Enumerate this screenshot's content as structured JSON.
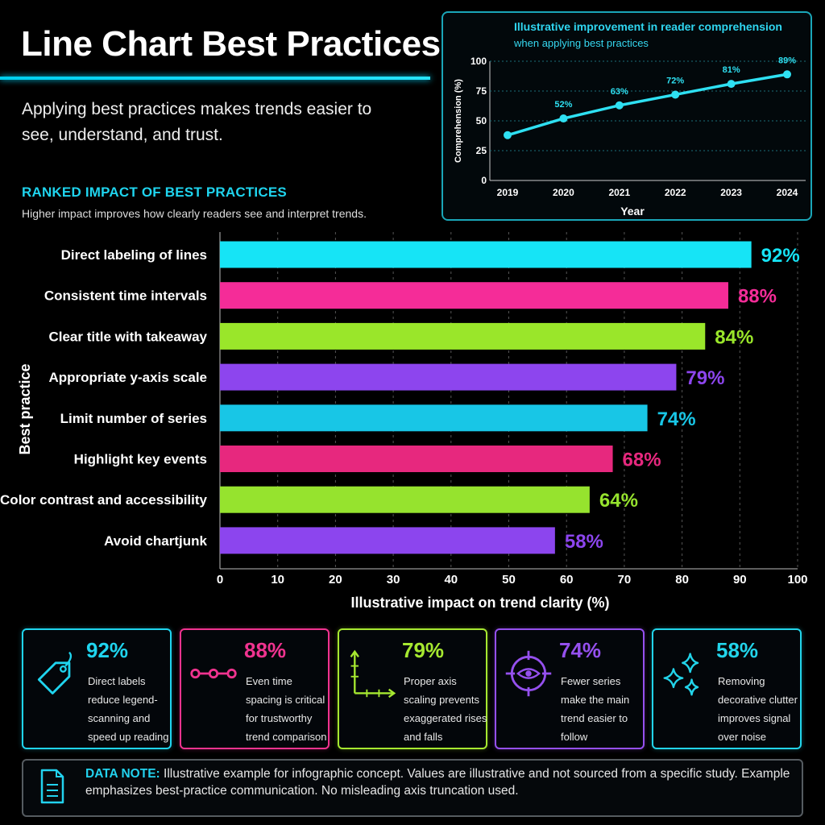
{
  "header": {
    "title": "Line Chart Best Practices",
    "subtitle": "Applying best practices makes trends easier to see, understand, and trust."
  },
  "ranked": {
    "heading": "RANKED IMPACT OF BEST PRACTICES",
    "subheading": "Higher impact improves how clearly readers see and interpret trends."
  },
  "chart_data": [
    {
      "type": "line",
      "title": "Illustrative improvement in reader comprehension",
      "subtitle": "when applying best practices",
      "xlabel": "Year",
      "ylabel": "Comprehension (%)",
      "x": [
        "2019",
        "2020",
        "2021",
        "2022",
        "2023",
        "2024"
      ],
      "series": [
        {
          "values": [
            38,
            52,
            63,
            72,
            81,
            89
          ],
          "point_labels": [
            "",
            "52%",
            "63%",
            "72%",
            "81%",
            "89%"
          ]
        }
      ],
      "ylim": [
        0,
        100
      ],
      "yticks": [
        0,
        25,
        50,
        75,
        100
      ],
      "grid": "horizontal dashed",
      "color": "#2ee0f2"
    },
    {
      "type": "bar",
      "orientation": "horizontal",
      "xlabel": "Illustrative impact on trend clarity (%)",
      "ylabel": "Best practice",
      "xlim": [
        0,
        100
      ],
      "xticks": [
        0,
        10,
        20,
        30,
        40,
        50,
        60,
        70,
        80,
        90,
        100
      ],
      "grid": "vertical dashed",
      "categories": [
        "Direct labeling of lines",
        "Consistent time intervals",
        "Clear title with takeaway",
        "Appropriate y-axis scale",
        "Limit number of series",
        "Highlight key events",
        "Color contrast and accessibility",
        "Avoid chartjunk"
      ],
      "values": [
        92,
        88,
        84,
        79,
        74,
        68,
        64,
        58
      ],
      "value_labels": [
        "92%",
        "88%",
        "84%",
        "79%",
        "74%",
        "68%",
        "64%",
        "58%"
      ],
      "colors": [
        "#16e4f6",
        "#f52c98",
        "#9ae62a",
        "#8d45ee",
        "#18c6e6",
        "#e7287e",
        "#96e32e",
        "#8c45ee"
      ]
    }
  ],
  "cards": [
    {
      "pct": "92%",
      "desc": "Direct labels reduce legend-scanning and speed up reading",
      "color": "#1fd4ee",
      "icon": "tag-icon"
    },
    {
      "pct": "88%",
      "desc": "Even time spacing is critical for trustworthy trend comparison",
      "color": "#f0338f",
      "icon": "timeline-dots-icon"
    },
    {
      "pct": "79%",
      "desc": "Proper axis scaling prevents exaggerated rises and falls",
      "color": "#a6e830",
      "icon": "axes-icon"
    },
    {
      "pct": "74%",
      "desc": "Fewer series make the main trend easier to follow",
      "color": "#9550ee",
      "icon": "target-eye-icon"
    },
    {
      "pct": "58%",
      "desc": "Removing decorative clutter improves signal over noise",
      "color": "#22d4ea",
      "icon": "sparkle-icon"
    }
  ],
  "note": {
    "label": "DATA NOTE:",
    "text": " Illustrative example for infographic concept. Values are illustrative and not sourced from a specific study. Example emphasizes best-practice communication. No misleading axis truncation used."
  }
}
